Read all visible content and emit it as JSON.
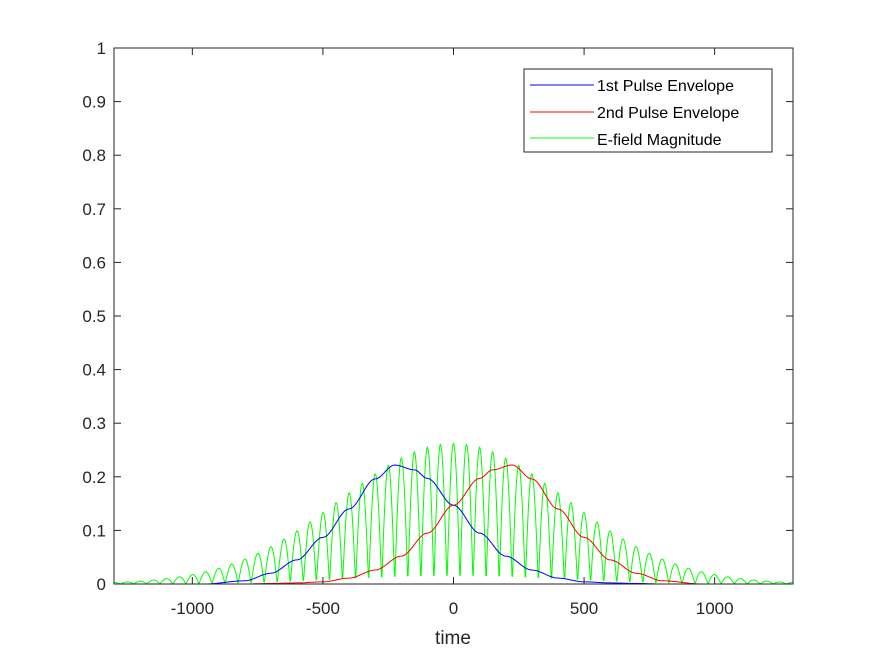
{
  "chart_data": {
    "type": "line",
    "title": "",
    "xlabel": "time",
    "ylabel": "",
    "xlim": [
      -1300,
      1300
    ],
    "ylim": [
      0,
      1
    ],
    "xticks": [
      -1000,
      -500,
      0,
      500,
      1000
    ],
    "yticks": [
      0,
      0.1,
      0.2,
      0.3,
      0.4,
      0.5,
      0.6,
      0.7,
      0.8,
      0.9,
      1
    ],
    "xtick_labels": [
      "-1000",
      "-500",
      "0",
      "500",
      "1000"
    ],
    "ytick_labels": [
      "0",
      "0.1",
      "0.2",
      "0.3",
      "0.4",
      "0.5",
      "0.6",
      "0.7",
      "0.8",
      "0.9",
      "1"
    ],
    "grid": false,
    "legend_position": "top-right",
    "series": [
      {
        "name": "1st Pulse Envelope",
        "color": "#0000ff",
        "x": [
          -950,
          -800,
          -700,
          -600,
          -500,
          -400,
          -300,
          -225,
          -150,
          -100,
          0,
          100,
          200,
          300,
          400,
          500,
          600,
          700,
          800,
          950
        ],
        "y": [
          0.0,
          0.006,
          0.02,
          0.045,
          0.087,
          0.14,
          0.196,
          0.222,
          0.213,
          0.197,
          0.147,
          0.095,
          0.052,
          0.026,
          0.011,
          0.004,
          0.002,
          0.001,
          0.0,
          0.0
        ]
      },
      {
        "name": "2nd Pulse Envelope",
        "color": "#ff0000",
        "x": [
          -950,
          -800,
          -700,
          -600,
          -500,
          -400,
          -300,
          -200,
          -100,
          0,
          100,
          150,
          225,
          300,
          400,
          500,
          600,
          700,
          800,
          950
        ],
        "y": [
          0.0,
          0.0,
          0.001,
          0.002,
          0.004,
          0.011,
          0.026,
          0.052,
          0.095,
          0.147,
          0.197,
          0.213,
          0.222,
          0.196,
          0.14,
          0.087,
          0.045,
          0.02,
          0.006,
          0.0
        ]
      },
      {
        "name": "E-field Magnitude",
        "color": "#00ff00",
        "x": [
          -1300,
          1300
        ],
        "y": [
          0,
          0
        ],
        "carrier_period": 50,
        "peak_magnitude": 0.262
      }
    ]
  },
  "legend": {
    "items": [
      {
        "label": "1st Pulse Envelope",
        "color": "#0000ff"
      },
      {
        "label": "2nd Pulse Envelope",
        "color": "#ff0000"
      },
      {
        "label": "E-field Magnitude",
        "color": "#00ff00"
      }
    ]
  }
}
